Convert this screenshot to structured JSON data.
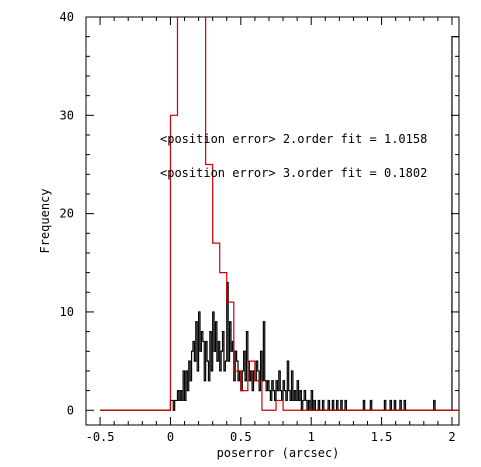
{
  "chart_data": {
    "type": "histogram",
    "xlabel": "poserror (arcsec)",
    "ylabel": "Frequency",
    "xlim": [
      -0.6,
      2.05
    ],
    "ylim": [
      -1.5,
      40
    ],
    "x_ticks": [
      -0.5,
      0,
      0.5,
      1,
      1.5,
      2
    ],
    "x_tick_labels": [
      "-0.5",
      "0",
      "0.5",
      "1",
      "1.5",
      "2"
    ],
    "y_ticks": [
      0,
      10,
      20,
      30,
      40
    ],
    "y_tick_labels": [
      "0",
      "10",
      "20",
      "30",
      "40"
    ],
    "grid": false,
    "annotations": [
      {
        "text": "<position error> 2.order fit = 1.0158",
        "color": "#000000"
      },
      {
        "text": "<position error> 3.order fit = 0.1802",
        "color": "#cc0000"
      }
    ],
    "series": [
      {
        "color": "#000000",
        "points": [
          [
            -0.5,
            0
          ],
          [
            0.0,
            1
          ],
          [
            0.02,
            0
          ],
          [
            0.03,
            1
          ],
          [
            0.05,
            2
          ],
          [
            0.06,
            1
          ],
          [
            0.07,
            2
          ],
          [
            0.08,
            1
          ],
          [
            0.09,
            4
          ],
          [
            0.1,
            1
          ],
          [
            0.11,
            4
          ],
          [
            0.12,
            2
          ],
          [
            0.13,
            5
          ],
          [
            0.14,
            3
          ],
          [
            0.15,
            6
          ],
          [
            0.16,
            7
          ],
          [
            0.17,
            5
          ],
          [
            0.18,
            9
          ],
          [
            0.19,
            4
          ],
          [
            0.2,
            10
          ],
          [
            0.21,
            6
          ],
          [
            0.22,
            8
          ],
          [
            0.23,
            7
          ],
          [
            0.24,
            3
          ],
          [
            0.25,
            7
          ],
          [
            0.26,
            5
          ],
          [
            0.27,
            3
          ],
          [
            0.28,
            8
          ],
          [
            0.29,
            4
          ],
          [
            0.3,
            10
          ],
          [
            0.31,
            6
          ],
          [
            0.32,
            9
          ],
          [
            0.33,
            5
          ],
          [
            0.34,
            7
          ],
          [
            0.35,
            4
          ],
          [
            0.36,
            6
          ],
          [
            0.37,
            8
          ],
          [
            0.38,
            4
          ],
          [
            0.39,
            5
          ],
          [
            0.4,
            13
          ],
          [
            0.41,
            5
          ],
          [
            0.42,
            9
          ],
          [
            0.43,
            6
          ],
          [
            0.44,
            7
          ],
          [
            0.45,
            3
          ],
          [
            0.46,
            6
          ],
          [
            0.47,
            5
          ],
          [
            0.48,
            3
          ],
          [
            0.49,
            4
          ],
          [
            0.5,
            2
          ],
          [
            0.51,
            4
          ],
          [
            0.52,
            6
          ],
          [
            0.53,
            3
          ],
          [
            0.54,
            8
          ],
          [
            0.55,
            5
          ],
          [
            0.56,
            3
          ],
          [
            0.57,
            4
          ],
          [
            0.58,
            2
          ],
          [
            0.59,
            4
          ],
          [
            0.6,
            3
          ],
          [
            0.61,
            5
          ],
          [
            0.62,
            4
          ],
          [
            0.63,
            2
          ],
          [
            0.64,
            6
          ],
          [
            0.65,
            3
          ],
          [
            0.66,
            9
          ],
          [
            0.67,
            3
          ],
          [
            0.68,
            2
          ],
          [
            0.69,
            3
          ],
          [
            0.7,
            2
          ],
          [
            0.71,
            1
          ],
          [
            0.72,
            3
          ],
          [
            0.73,
            2
          ],
          [
            0.74,
            1
          ],
          [
            0.75,
            3
          ],
          [
            0.76,
            2
          ],
          [
            0.77,
            4
          ],
          [
            0.78,
            2
          ],
          [
            0.79,
            1
          ],
          [
            0.8,
            3
          ],
          [
            0.81,
            2
          ],
          [
            0.82,
            1
          ],
          [
            0.83,
            5
          ],
          [
            0.84,
            2
          ],
          [
            0.85,
            1
          ],
          [
            0.86,
            4
          ],
          [
            0.87,
            1
          ],
          [
            0.88,
            2
          ],
          [
            0.89,
            1
          ],
          [
            0.9,
            3
          ],
          [
            0.91,
            1
          ],
          [
            0.92,
            2
          ],
          [
            0.93,
            0
          ],
          [
            0.94,
            1
          ],
          [
            0.95,
            2
          ],
          [
            0.96,
            1
          ],
          [
            0.97,
            0
          ],
          [
            0.98,
            1
          ],
          [
            0.99,
            0
          ],
          [
            1.0,
            2
          ],
          [
            1.01,
            0
          ],
          [
            1.02,
            1
          ],
          [
            1.03,
            0
          ],
          [
            1.05,
            1
          ],
          [
            1.06,
            0
          ],
          [
            1.08,
            1
          ],
          [
            1.09,
            0
          ],
          [
            1.12,
            1
          ],
          [
            1.13,
            0
          ],
          [
            1.15,
            1
          ],
          [
            1.16,
            0
          ],
          [
            1.18,
            1
          ],
          [
            1.19,
            0
          ],
          [
            1.21,
            1
          ],
          [
            1.22,
            0
          ],
          [
            1.24,
            1
          ],
          [
            1.25,
            0
          ],
          [
            1.37,
            1
          ],
          [
            1.38,
            0
          ],
          [
            1.42,
            1
          ],
          [
            1.43,
            0
          ],
          [
            1.52,
            1
          ],
          [
            1.53,
            0
          ],
          [
            1.56,
            1
          ],
          [
            1.57,
            0
          ],
          [
            1.59,
            1
          ],
          [
            1.6,
            0
          ],
          [
            1.63,
            1
          ],
          [
            1.64,
            0
          ],
          [
            1.66,
            1
          ],
          [
            1.67,
            0
          ],
          [
            1.87,
            1
          ],
          [
            1.88,
            0
          ],
          [
            2.0,
            38
          ]
        ]
      },
      {
        "color": "#cc0000",
        "points": [
          [
            -0.5,
            0
          ],
          [
            0.0,
            30
          ],
          [
            0.05,
            41
          ],
          [
            0.24,
            41
          ],
          [
            0.25,
            25
          ],
          [
            0.3,
            17
          ],
          [
            0.35,
            14
          ],
          [
            0.4,
            11
          ],
          [
            0.45,
            4
          ],
          [
            0.5,
            2
          ],
          [
            0.55,
            5
          ],
          [
            0.6,
            3
          ],
          [
            0.65,
            0
          ],
          [
            0.75,
            1
          ],
          [
            0.8,
            0
          ],
          [
            2.0,
            0
          ]
        ]
      }
    ]
  }
}
